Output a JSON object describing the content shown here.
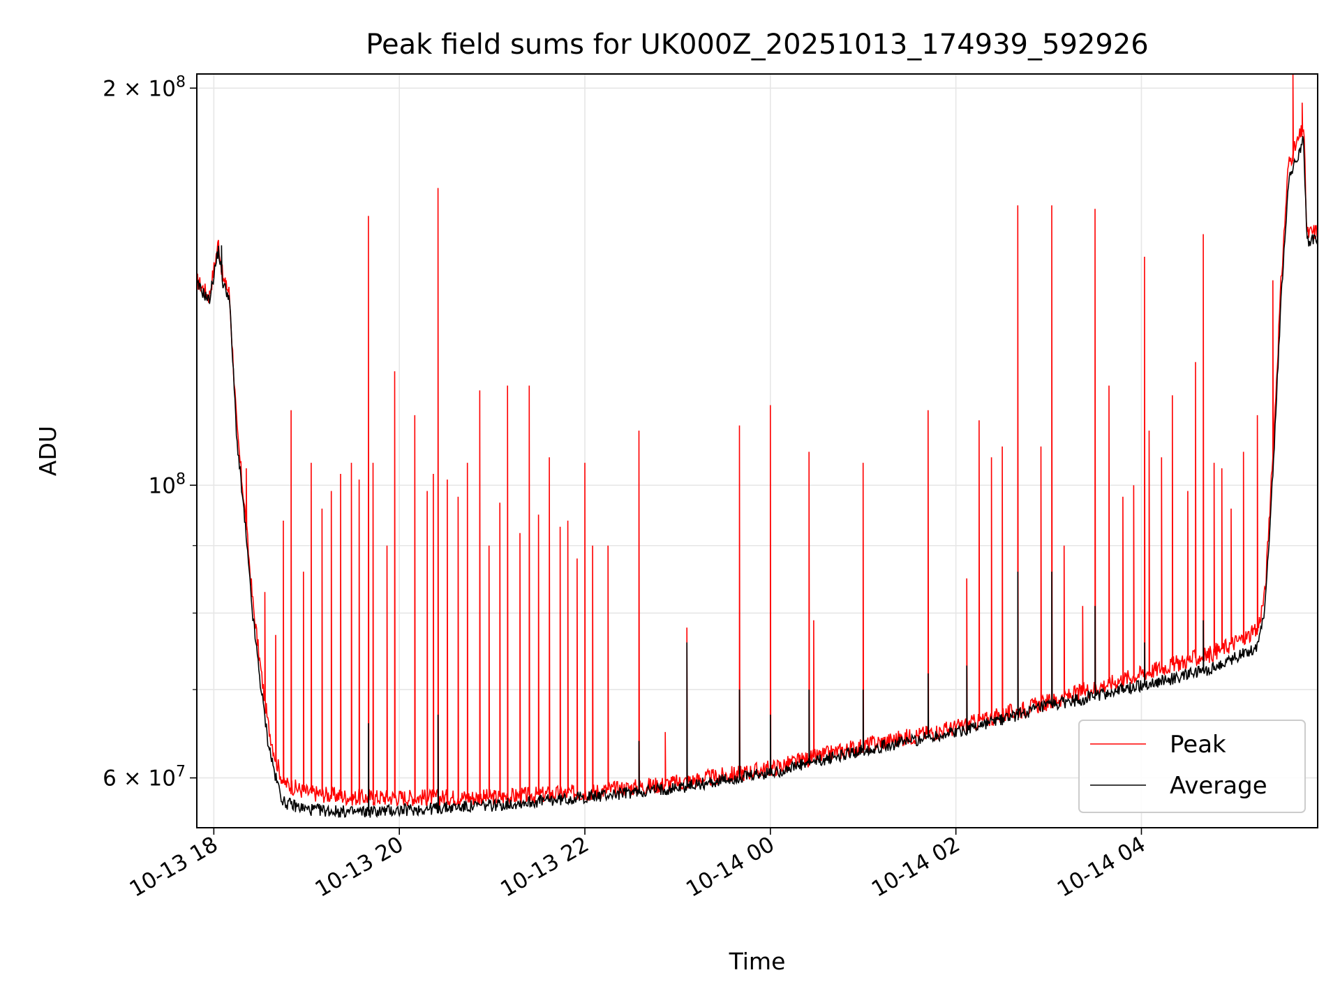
{
  "chart_data": {
    "type": "line",
    "title": "Peak field sums for UK000Z_20251013_174939_592926",
    "xlabel": "Time",
    "ylabel": "ADU",
    "yscale": "log",
    "xlim": [
      "2025-10-13T17:49",
      "2025-10-14T05:54"
    ],
    "ylim": [
      55000000,
      205000000
    ],
    "grid": true,
    "legend_position": "lower-right",
    "x_ticks": [
      {
        "t": "2025-10-13T18:00",
        "label": "10-13 18"
      },
      {
        "t": "2025-10-13T20:00",
        "label": "10-13 20"
      },
      {
        "t": "2025-10-13T22:00",
        "label": "10-13 22"
      },
      {
        "t": "2025-10-14T00:00",
        "label": "10-14 00"
      },
      {
        "t": "2025-10-14T02:00",
        "label": "10-14 02"
      },
      {
        "t": "2025-10-14T04:00",
        "label": "10-14 04"
      }
    ],
    "y_ticks_major": [
      {
        "value": 60000000,
        "label": "6 × 10",
        "exp": "7"
      },
      {
        "value": 100000000,
        "label": "10",
        "exp": "8"
      },
      {
        "value": 200000000,
        "label": "2 × 10",
        "exp": "8"
      }
    ],
    "y_ticks_minor": [
      70000000,
      80000000,
      90000000
    ],
    "series": [
      {
        "name": "Peak",
        "color": "#ff0000",
        "baseline": [
          [
            "2025-10-13T17:49",
            143000000
          ],
          [
            "2025-10-13T17:53",
            141000000
          ],
          [
            "2025-10-13T17:57",
            139000000
          ],
          [
            "2025-10-13T18:03",
            153000000
          ],
          [
            "2025-10-13T18:06",
            143000000
          ],
          [
            "2025-10-13T18:10",
            140000000
          ],
          [
            "2025-10-13T18:15",
            110000000
          ],
          [
            "2025-10-13T18:20",
            96000000
          ],
          [
            "2025-10-13T18:25",
            82000000
          ],
          [
            "2025-10-13T18:30",
            73000000
          ],
          [
            "2025-10-13T18:35",
            66000000
          ],
          [
            "2025-10-13T18:40",
            62000000
          ],
          [
            "2025-10-13T18:45",
            59500000
          ],
          [
            "2025-10-13T19:00",
            58500000
          ],
          [
            "2025-10-13T19:30",
            58000000
          ],
          [
            "2025-10-13T20:00",
            58000000
          ],
          [
            "2025-10-13T21:00",
            58000000
          ],
          [
            "2025-10-13T22:00",
            58500000
          ],
          [
            "2025-10-13T23:00",
            59500000
          ],
          [
            "2025-10-14T00:00",
            61000000
          ],
          [
            "2025-10-14T01:00",
            63500000
          ],
          [
            "2025-10-14T02:00",
            65500000
          ],
          [
            "2025-10-14T03:00",
            68500000
          ],
          [
            "2025-10-14T04:00",
            72000000
          ],
          [
            "2025-10-14T04:45",
            74500000
          ],
          [
            "2025-10-14T05:15",
            77500000
          ],
          [
            "2025-10-14T05:20",
            83000000
          ],
          [
            "2025-10-14T05:25",
            105000000
          ],
          [
            "2025-10-14T05:30",
            140000000
          ],
          [
            "2025-10-14T05:35",
            175000000
          ],
          [
            "2025-10-14T05:45",
            187000000
          ],
          [
            "2025-10-14T05:47",
            155000000
          ],
          [
            "2025-10-14T05:54",
            156000000
          ]
        ],
        "spikes": [
          [
            "2025-10-13T18:05",
            145000000
          ],
          [
            "2025-10-13T18:08",
            143000000
          ],
          [
            "2025-10-13T18:21",
            103000000
          ],
          [
            "2025-10-13T18:33",
            83000000
          ],
          [
            "2025-10-13T18:40",
            77000000
          ],
          [
            "2025-10-13T18:45",
            94000000
          ],
          [
            "2025-10-13T18:50",
            114000000
          ],
          [
            "2025-10-13T18:58",
            86000000
          ],
          [
            "2025-10-13T19:03",
            104000000
          ],
          [
            "2025-10-13T19:10",
            96000000
          ],
          [
            "2025-10-13T19:16",
            99000000
          ],
          [
            "2025-10-13T19:22",
            102000000
          ],
          [
            "2025-10-13T19:29",
            104000000
          ],
          [
            "2025-10-13T19:34",
            101000000
          ],
          [
            "2025-10-13T19:40",
            160000000
          ],
          [
            "2025-10-13T19:43",
            104000000
          ],
          [
            "2025-10-13T19:52",
            90000000
          ],
          [
            "2025-10-13T19:57",
            122000000
          ],
          [
            "2025-10-13T20:10",
            113000000
          ],
          [
            "2025-10-13T20:18",
            99000000
          ],
          [
            "2025-10-13T20:22",
            102000000
          ],
          [
            "2025-10-13T20:25",
            168000000
          ],
          [
            "2025-10-13T20:31",
            101000000
          ],
          [
            "2025-10-13T20:38",
            98000000
          ],
          [
            "2025-10-13T20:44",
            104000000
          ],
          [
            "2025-10-13T20:52",
            118000000
          ],
          [
            "2025-10-13T20:58",
            90000000
          ],
          [
            "2025-10-13T21:05",
            97000000
          ],
          [
            "2025-10-13T21:10",
            119000000
          ],
          [
            "2025-10-13T21:18",
            92000000
          ],
          [
            "2025-10-13T21:24",
            119000000
          ],
          [
            "2025-10-13T21:30",
            95000000
          ],
          [
            "2025-10-13T21:37",
            105000000
          ],
          [
            "2025-10-13T21:44",
            93000000
          ],
          [
            "2025-10-13T21:49",
            94000000
          ],
          [
            "2025-10-13T21:55",
            88000000
          ],
          [
            "2025-10-13T22:00",
            104000000
          ],
          [
            "2025-10-13T22:05",
            90000000
          ],
          [
            "2025-10-13T22:15",
            90000000
          ],
          [
            "2025-10-13T22:35",
            110000000
          ],
          [
            "2025-10-13T22:52",
            65000000
          ],
          [
            "2025-10-13T23:06",
            78000000
          ],
          [
            "2025-10-13T23:40",
            111000000
          ],
          [
            "2025-10-14T00:00",
            115000000
          ],
          [
            "2025-10-14T00:25",
            106000000
          ],
          [
            "2025-10-14T00:28",
            79000000
          ],
          [
            "2025-10-14T01:00",
            104000000
          ],
          [
            "2025-10-14T01:42",
            114000000
          ],
          [
            "2025-10-14T02:07",
            85000000
          ],
          [
            "2025-10-14T02:15",
            112000000
          ],
          [
            "2025-10-14T02:23",
            105000000
          ],
          [
            "2025-10-14T02:30",
            107000000
          ],
          [
            "2025-10-14T02:40",
            163000000
          ],
          [
            "2025-10-14T02:55",
            107000000
          ],
          [
            "2025-10-14T03:02",
            163000000
          ],
          [
            "2025-10-14T03:10",
            90000000
          ],
          [
            "2025-10-14T03:22",
            81000000
          ],
          [
            "2025-10-14T03:30",
            162000000
          ],
          [
            "2025-10-14T03:39",
            119000000
          ],
          [
            "2025-10-14T03:48",
            98000000
          ],
          [
            "2025-10-14T03:55",
            100000000
          ],
          [
            "2025-10-14T04:02",
            149000000
          ],
          [
            "2025-10-14T04:05",
            110000000
          ],
          [
            "2025-10-14T04:13",
            105000000
          ],
          [
            "2025-10-14T04:20",
            117000000
          ],
          [
            "2025-10-14T04:30",
            99000000
          ],
          [
            "2025-10-14T04:35",
            124000000
          ],
          [
            "2025-10-14T04:40",
            155000000
          ],
          [
            "2025-10-14T04:47",
            104000000
          ],
          [
            "2025-10-14T04:52",
            103000000
          ],
          [
            "2025-10-14T04:58",
            96000000
          ],
          [
            "2025-10-14T05:06",
            106000000
          ],
          [
            "2025-10-14T05:15",
            113000000
          ],
          [
            "2025-10-14T05:25",
            143000000
          ],
          [
            "2025-10-14T05:38",
            205000000
          ],
          [
            "2025-10-14T05:44",
            195000000
          ]
        ]
      },
      {
        "name": "Average",
        "color": "#000000",
        "baseline": [
          [
            "2025-10-13T17:49",
            142000000
          ],
          [
            "2025-10-13T17:53",
            140000000
          ],
          [
            "2025-10-13T17:57",
            138000000
          ],
          [
            "2025-10-13T18:03",
            151000000
          ],
          [
            "2025-10-13T18:06",
            142000000
          ],
          [
            "2025-10-13T18:10",
            139000000
          ],
          [
            "2025-10-13T18:15",
            108000000
          ],
          [
            "2025-10-13T18:20",
            94000000
          ],
          [
            "2025-10-13T18:25",
            80000000
          ],
          [
            "2025-10-13T18:30",
            71000000
          ],
          [
            "2025-10-13T18:35",
            64000000
          ],
          [
            "2025-10-13T18:40",
            60000000
          ],
          [
            "2025-10-13T18:45",
            57500000
          ],
          [
            "2025-10-13T19:00",
            56800000
          ],
          [
            "2025-10-13T19:30",
            56500000
          ],
          [
            "2025-10-13T20:00",
            56700000
          ],
          [
            "2025-10-13T21:00",
            57200000
          ],
          [
            "2025-10-13T22:00",
            58000000
          ],
          [
            "2025-10-13T23:00",
            59000000
          ],
          [
            "2025-10-14T00:00",
            60500000
          ],
          [
            "2025-10-14T01:00",
            63000000
          ],
          [
            "2025-10-14T02:00",
            65000000
          ],
          [
            "2025-10-14T03:00",
            68000000
          ],
          [
            "2025-10-14T04:00",
            70500000
          ],
          [
            "2025-10-14T04:45",
            72500000
          ],
          [
            "2025-10-14T05:15",
            75500000
          ],
          [
            "2025-10-14T05:20",
            81000000
          ],
          [
            "2025-10-14T05:25",
            102000000
          ],
          [
            "2025-10-14T05:30",
            136000000
          ],
          [
            "2025-10-14T05:35",
            170000000
          ],
          [
            "2025-10-14T05:45",
            183000000
          ],
          [
            "2025-10-14T05:47",
            153000000
          ],
          [
            "2025-10-14T05:54",
            154000000
          ]
        ],
        "spikes": [
          [
            "2025-10-13T18:05",
            152000000
          ],
          [
            "2025-10-13T19:40",
            66000000
          ],
          [
            "2025-10-13T20:25",
            67000000
          ],
          [
            "2025-10-13T22:35",
            64000000
          ],
          [
            "2025-10-13T23:06",
            76000000
          ],
          [
            "2025-10-13T23:40",
            70000000
          ],
          [
            "2025-10-14T00:00",
            67000000
          ],
          [
            "2025-10-14T00:25",
            70000000
          ],
          [
            "2025-10-14T01:00",
            70000000
          ],
          [
            "2025-10-14T01:42",
            72000000
          ],
          [
            "2025-10-14T02:07",
            73000000
          ],
          [
            "2025-10-14T02:40",
            86000000
          ],
          [
            "2025-10-14T03:02",
            86000000
          ],
          [
            "2025-10-14T03:30",
            81000000
          ],
          [
            "2025-10-14T04:02",
            76000000
          ],
          [
            "2025-10-14T04:40",
            79000000
          ]
        ]
      }
    ]
  }
}
